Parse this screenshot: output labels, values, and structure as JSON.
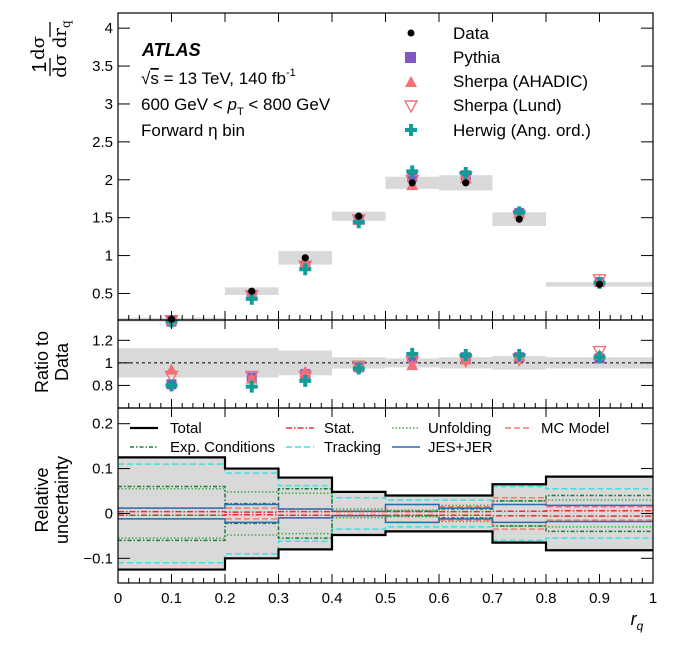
{
  "chart_data": {
    "type": "scatter",
    "x_label": "r",
    "x_label_sub": "q",
    "x_range": [
      0,
      1
    ],
    "x_ticks": [
      "0",
      "0.1",
      "0.2",
      "0.3",
      "0.4",
      "0.5",
      "0.6",
      "0.7",
      "0.8",
      "0.9",
      "1"
    ],
    "bins": [
      [
        0.0,
        0.2
      ],
      [
        0.2,
        0.3
      ],
      [
        0.3,
        0.4
      ],
      [
        0.4,
        0.5
      ],
      [
        0.5,
        0.6
      ],
      [
        0.6,
        0.7
      ],
      [
        0.7,
        0.8
      ],
      [
        0.8,
        1.0
      ]
    ],
    "centers": [
      0.1,
      0.25,
      0.35,
      0.45,
      0.55,
      0.65,
      0.75,
      0.9
    ],
    "main": {
      "y_label_pre": "1",
      "y_label_num": "dσ",
      "y_label_den1": "dσ",
      "y_label_den2": "dr",
      "y_label_den_sub": "q",
      "y_range": [
        0.15,
        4.2
      ],
      "y_ticks": [
        "0.5",
        "1",
        "1.5",
        "2",
        "2.5",
        "3",
        "3.5",
        "4"
      ],
      "total_unc": [
        0.02,
        0.05,
        0.09,
        0.06,
        0.08,
        0.1,
        0.09,
        0.03
      ],
      "data": [
        0.16,
        0.53,
        0.97,
        1.52,
        1.96,
        1.96,
        1.48,
        0.62
      ],
      "pythia": [
        0.13,
        0.47,
        0.87,
        1.47,
        2.04,
        2.06,
        1.56,
        0.65
      ],
      "sherpa_ahadic": [
        0.15,
        0.5,
        0.91,
        1.47,
        1.93,
        2.02,
        1.56,
        0.66
      ],
      "sherpa_lund": [
        0.14,
        0.47,
        0.86,
        1.47,
        1.99,
        2.03,
        1.52,
        0.68
      ],
      "herwig": [
        0.13,
        0.43,
        0.82,
        1.44,
        2.11,
        2.09,
        1.57,
        0.64
      ]
    },
    "ratio": {
      "y_label_1": "Ratio to",
      "y_label_2": "Data",
      "y_range": [
        0.6,
        1.38
      ],
      "y_ticks": [
        "0.8",
        "1",
        "1.2"
      ],
      "band_half": [
        0.13,
        0.13,
        0.11,
        0.05,
        0.04,
        0.05,
        0.06,
        0.05
      ],
      "pythia": [
        0.81,
        0.87,
        0.9,
        0.96,
        1.04,
        1.05,
        1.05,
        1.04
      ],
      "sherpa_ahadic": [
        0.94,
        0.86,
        0.92,
        0.97,
        0.98,
        1.03,
        1.06,
        1.07
      ],
      "sherpa_lund": [
        0.88,
        0.88,
        0.88,
        0.97,
        1.01,
        1.02,
        1.03,
        1.1
      ],
      "herwig": [
        0.8,
        0.79,
        0.84,
        0.95,
        1.08,
        1.07,
        1.07,
        1.05
      ]
    },
    "relunc": {
      "y_label_1": "Relative",
      "y_label_2": "uncertainty",
      "y_range": [
        -0.155,
        0.235
      ],
      "y_ticks": [
        "−0.1",
        "0",
        "0.1",
        "0.2"
      ],
      "total": [
        0.125,
        0.1,
        0.08,
        0.048,
        0.04,
        0.04,
        0.065,
        0.082
      ],
      "stat": [
        0.004,
        0.003,
        0.004,
        0.004,
        0.004,
        0.004,
        0.005,
        0.006
      ],
      "unfolding": [
        0.055,
        0.048,
        0.045,
        0.01,
        0.007,
        0.018,
        0.028,
        0.03
      ],
      "mc_model": [
        0.012,
        0.012,
        0.01,
        0.005,
        0.02,
        0.015,
        0.035,
        0.015
      ],
      "exp_conditions": [
        0.06,
        0.022,
        0.055,
        0.005,
        0.005,
        0.01,
        0.028,
        0.04
      ],
      "tracking": [
        0.11,
        0.09,
        0.062,
        0.035,
        0.03,
        0.03,
        0.06,
        0.055
      ],
      "jes_jer": [
        0.012,
        0.02,
        0.01,
        0.005,
        0.02,
        0.012,
        0.02,
        0.018
      ]
    },
    "colors": {
      "data": "#000000",
      "pythia": "#7e57c2",
      "sherpa_ahadic": "#f07178",
      "sherpa_lund": "#f07178",
      "herwig": "#129c97",
      "band": "#d9d9d9",
      "total": "#000000",
      "stat": "#e03030",
      "unfolding": "#3cb043",
      "mc_model": "#f47c6c",
      "exp_conditions": "#1f7a3a",
      "tracking": "#40e0e0",
      "jes_jer": "#2b6cb0"
    }
  },
  "annotation": {
    "atlas": "ATLAS",
    "energy_pre": "√",
    "energy_s": "s",
    "energy_rest": " = 13 TeV, 140 fb",
    "energy_sup": "-1",
    "pt_pre": "600 GeV < ",
    "pt_p": "p",
    "pt_sub": "T",
    "pt_post": " < 800 GeV",
    "region": "Forward η bin"
  },
  "legend_main": {
    "data": "Data",
    "pythia": "Pythia",
    "sherpa_ahadic": "Sherpa (AHADIC)",
    "sherpa_lund": "Sherpa (Lund)",
    "herwig": "Herwig (Ang. ord.)"
  },
  "legend_unc": {
    "total": "Total",
    "stat": "Stat.",
    "unfolding": "Unfolding",
    "mc_model": "MC Model",
    "exp_conditions": "Exp. Conditions",
    "tracking": "Tracking",
    "jes_jer": "JES+JER"
  }
}
